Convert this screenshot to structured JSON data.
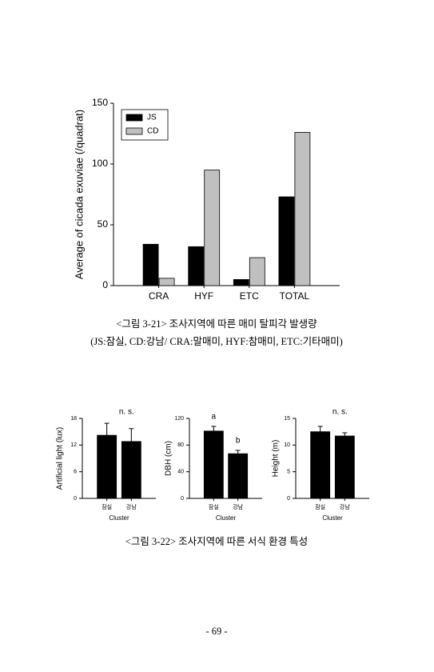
{
  "chart_data": [
    {
      "type": "bar",
      "y_label": "Average of cicada exuviae (/quadrat)",
      "categories": [
        "CRA",
        "HYF",
        "ETC",
        "TOTAL"
      ],
      "series": [
        {
          "name": "JS",
          "color": "#000000",
          "values": [
            34,
            32,
            5,
            73
          ]
        },
        {
          "name": "CD",
          "color": "#c0c0c0",
          "values": [
            6,
            95,
            23,
            126
          ]
        }
      ],
      "ylim": [
        0,
        150
      ],
      "yticks": [
        0,
        50,
        100,
        150
      ],
      "legend": "upper-left"
    },
    {
      "type": "bar",
      "title": "n. s.",
      "y_label": "Artificial light (lux)",
      "x_label": "Cluster",
      "categories": [
        "잠실",
        "강남"
      ],
      "values": [
        14.2,
        12.8
      ],
      "errors": [
        2.7,
        2.9
      ],
      "color": "#000000",
      "ylim": [
        0,
        18
      ],
      "yticks": [
        0,
        6,
        12,
        18
      ]
    },
    {
      "type": "bar",
      "y_label": "DBH (cm)",
      "x_label": "Cluster",
      "categories": [
        "잠실",
        "강남"
      ],
      "values": [
        101,
        67
      ],
      "errors": [
        7,
        5
      ],
      "bar_labels": [
        "a",
        "b"
      ],
      "color": "#000000",
      "ylim": [
        0,
        120
      ],
      "yticks": [
        0,
        40,
        80,
        120
      ]
    },
    {
      "type": "bar",
      "title": "n. s.",
      "y_label": "Height (m)",
      "x_label": "Cluster",
      "categories": [
        "잠실",
        "강남"
      ],
      "values": [
        12.5,
        11.7
      ],
      "errors": [
        1,
        0.6
      ],
      "color": "#000000",
      "ylim": [
        0,
        15
      ],
      "yticks": [
        0,
        5,
        10,
        15
      ]
    }
  ],
  "captions": [
    "<그림 3-21> 조사지역에 따른 매미 탈피각 발생량",
    "(JS:잠실, CD:강남/ CRA:말매미, HYF:참매미, ETC:기타매미)",
    "<그림 3-22> 조사지역에 따른 서식 환경 특성"
  ],
  "page_number": "- 69 -"
}
